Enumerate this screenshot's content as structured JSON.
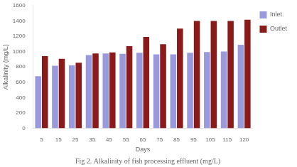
{
  "chart_data": {
    "type": "bar",
    "title": "Fig 2. Alkalinity of fish processing effluent (mg/L)",
    "xlabel": "Days",
    "ylabel": "Alkalinity (mg/L)",
    "categories": [
      "5",
      "15",
      "25",
      "35",
      "45",
      "55",
      "65",
      "75",
      "85",
      "95",
      "105",
      "115",
      "120"
    ],
    "series": [
      {
        "name": "Inlet.",
        "color": "#9999dd",
        "values": [
          680,
          815,
          820,
          955,
          975,
          970,
          985,
          965,
          965,
          985,
          995,
          1000,
          1090
        ]
      },
      {
        "name": "Outlet",
        "color": "#8B1A1A",
        "values": [
          940,
          905,
          855,
          975,
          990,
          1070,
          1190,
          1095,
          1300,
          1400,
          1400,
          1400,
          1415
        ]
      }
    ],
    "ylim": [
      0,
      1600
    ],
    "yticks": [
      0,
      200,
      400,
      600,
      800,
      1000,
      1200,
      1400,
      1600
    ],
    "grid": false,
    "legend": "upper right"
  }
}
